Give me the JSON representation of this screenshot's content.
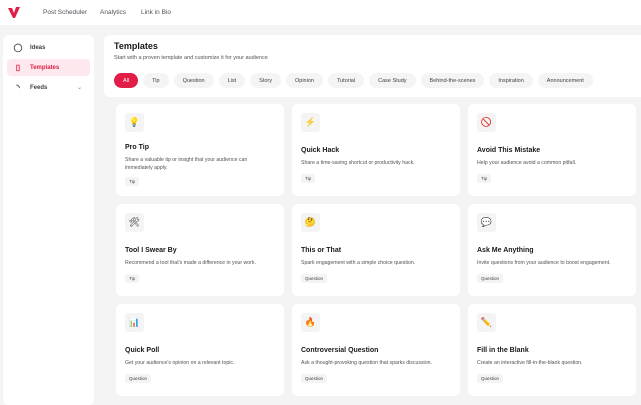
{
  "nav": {
    "links": [
      "Post Scheduler",
      "Analytics",
      "Link in Bio"
    ]
  },
  "sidebar": {
    "items": [
      {
        "label": "Ideas",
        "icon": "lightbulb-icon"
      },
      {
        "label": "Templates",
        "icon": "document-icon",
        "active": true
      },
      {
        "label": "Feeds",
        "icon": "rss-icon"
      }
    ]
  },
  "header": {
    "title": "Templates",
    "subtitle": "Start with a proven template and customize it for your audience"
  },
  "filters": [
    "All",
    "Tip",
    "Question",
    "List",
    "Story",
    "Opinion",
    "Tutorial",
    "Case Study",
    "Behind-the-scenes",
    "Inspiration",
    "Announcement"
  ],
  "accent": "#e11d48",
  "cards": [
    {
      "icon": "💡",
      "title": "Pro Tip",
      "desc": "Share a valuable tip or insight that your audience can immediately apply.",
      "tag": "Tip"
    },
    {
      "icon": "⚡",
      "title": "Quick Hack",
      "desc": "Share a time-saving shortcut or productivity hack.",
      "tag": "Tip"
    },
    {
      "icon": "🚫",
      "title": "Avoid This Mistake",
      "desc": "Help your audience avoid a common pitfall.",
      "tag": "Tip"
    },
    {
      "icon": "🛠",
      "title": "Tool I Swear By",
      "desc": "Recommend a tool that's made a difference in your work.",
      "tag": "Tip"
    },
    {
      "icon": "🤔",
      "title": "This or That",
      "desc": "Spark engagement with a simple choice question.",
      "tag": "Question"
    },
    {
      "icon": "💬",
      "title": "Ask Me Anything",
      "desc": "Invite questions from your audience to boost engagement.",
      "tag": "Question"
    },
    {
      "icon": "📊",
      "title": "Quick Poll",
      "desc": "Get your audience's opinion on a relevant topic.",
      "tag": "Question"
    },
    {
      "icon": "🔥",
      "title": "Controversial Question",
      "desc": "Ask a thought-provoking question that sparks discussion.",
      "tag": "Question"
    },
    {
      "icon": "✏️",
      "title": "Fill in the Blank",
      "desc": "Create an interactive fill-in-the-blank question.",
      "tag": "Question"
    }
  ]
}
